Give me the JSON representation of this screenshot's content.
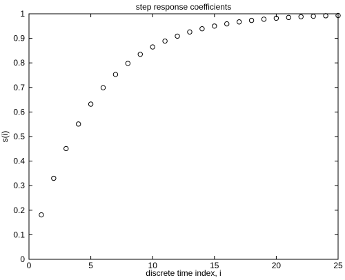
{
  "chart_data": {
    "type": "scatter",
    "title": "step response coefficients",
    "xlabel": "discrete time index, i",
    "ylabel": "s(i)",
    "xlim": [
      0,
      25
    ],
    "ylim": [
      0,
      1
    ],
    "xticks": [
      "0",
      "5",
      "10",
      "15",
      "20",
      "25"
    ],
    "yticks": [
      "0",
      "0.1",
      "0.2",
      "0.3",
      "0.4",
      "0.5",
      "0.6",
      "0.7",
      "0.8",
      "0.9",
      "1"
    ],
    "grid": false,
    "marker": "circle",
    "series": [
      {
        "x": [
          1,
          2,
          3,
          4,
          5,
          6,
          7,
          8,
          9,
          10,
          11,
          12,
          13,
          14,
          15,
          16,
          17,
          18,
          19,
          20,
          21,
          22,
          23,
          24,
          25
        ],
        "y": [
          0.181,
          0.33,
          0.451,
          0.551,
          0.632,
          0.699,
          0.753,
          0.798,
          0.835,
          0.865,
          0.889,
          0.909,
          0.926,
          0.939,
          0.95,
          0.959,
          0.967,
          0.973,
          0.978,
          0.982,
          0.985,
          0.988,
          0.99,
          0.992,
          0.993
        ]
      }
    ]
  }
}
